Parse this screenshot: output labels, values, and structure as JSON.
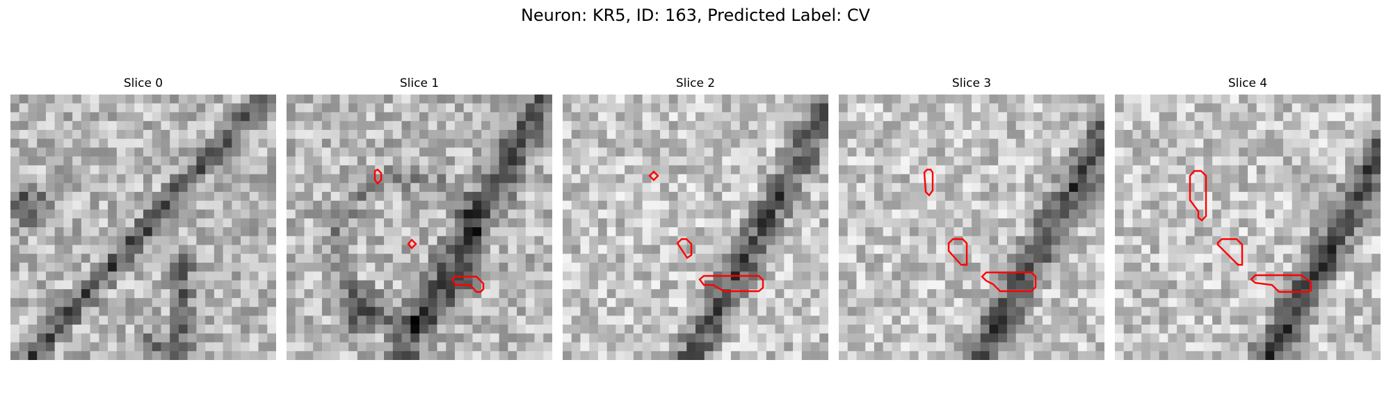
{
  "figure": {
    "title": "Neuron: KR5, ID: 163, Predicted Label: CV"
  },
  "panels": [
    {
      "title": "Slice 0"
    },
    {
      "title": "Slice 1"
    },
    {
      "title": "Slice 2"
    },
    {
      "title": "Slice 3"
    },
    {
      "title": "Slice 4"
    }
  ],
  "colors": {
    "contour": "#ff0000",
    "background": "#ffffff",
    "colormap": "grayscale"
  }
}
